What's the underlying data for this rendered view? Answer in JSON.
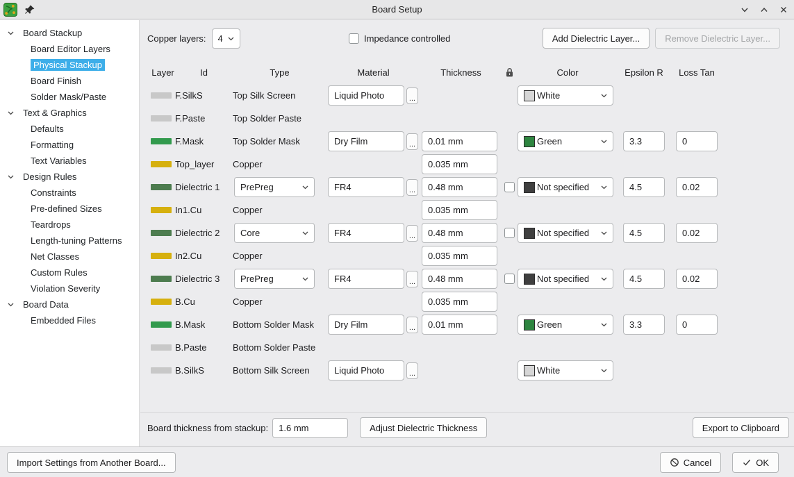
{
  "window": {
    "title": "Board Setup"
  },
  "sidebar": {
    "sections": [
      {
        "label": "Board Stackup",
        "expanded": true,
        "children": [
          {
            "label": "Board Editor Layers",
            "selected": false
          },
          {
            "label": "Physical Stackup",
            "selected": true
          },
          {
            "label": "Board Finish",
            "selected": false
          },
          {
            "label": "Solder Mask/Paste",
            "selected": false
          }
        ]
      },
      {
        "label": "Text & Graphics",
        "expanded": true,
        "children": [
          {
            "label": "Defaults",
            "selected": false
          },
          {
            "label": "Formatting",
            "selected": false
          },
          {
            "label": "Text Variables",
            "selected": false
          }
        ]
      },
      {
        "label": "Design Rules",
        "expanded": true,
        "children": [
          {
            "label": "Constraints",
            "selected": false
          },
          {
            "label": "Pre-defined Sizes",
            "selected": false
          },
          {
            "label": "Teardrops",
            "selected": false
          },
          {
            "label": "Length-tuning Patterns",
            "selected": false
          },
          {
            "label": "Net Classes",
            "selected": false
          },
          {
            "label": "Custom Rules",
            "selected": false
          },
          {
            "label": "Violation Severity",
            "selected": false
          }
        ]
      },
      {
        "label": "Board Data",
        "expanded": true,
        "children": [
          {
            "label": "Embedded Files",
            "selected": false
          }
        ]
      }
    ]
  },
  "toolbar": {
    "copper_layers_label": "Copper layers:",
    "copper_layers_value": "4",
    "impedance_checkbox_label": "Impedance controlled",
    "impedance_checked": false,
    "add_dielectric_button": "Add Dielectric Layer...",
    "remove_dielectric_button": "Remove Dielectric Layer...",
    "remove_dielectric_enabled": false
  },
  "stackup_table": {
    "headers": [
      "Layer",
      "Id",
      "Type",
      "Material",
      "Thickness",
      "",
      "Color",
      "Epsilon R",
      "Loss Tan"
    ],
    "material_browse_label": "...",
    "rows": [
      {
        "chip": "#c8c8c8",
        "id": "F.SilkS",
        "type": "Top Silk Screen",
        "type_widget": "text",
        "material": "Liquid Photo",
        "thickness": null,
        "lock_checkbox": false,
        "color": {
          "name": "White",
          "swatch": "#d6d6d6"
        },
        "epsilon": null,
        "loss": null
      },
      {
        "chip": "#c8c8c8",
        "id": "F.Paste",
        "type": "Top Solder Paste",
        "type_widget": "text",
        "material": null,
        "thickness": null,
        "lock_checkbox": false,
        "color": null,
        "epsilon": null,
        "loss": null
      },
      {
        "chip": "#329a4d",
        "id": "F.Mask",
        "type": "Top Solder Mask",
        "type_widget": "text",
        "material": "Dry Film",
        "thickness": "0.01 mm",
        "lock_checkbox": false,
        "color": {
          "name": "Green",
          "swatch": "#2e8540"
        },
        "epsilon": "3.3",
        "loss": "0"
      },
      {
        "chip": "#d6b00e",
        "id": "Top_layer",
        "type": "Copper",
        "type_widget": "text",
        "material": null,
        "thickness": "0.035 mm",
        "lock_checkbox": false,
        "color": null,
        "epsilon": null,
        "loss": null
      },
      {
        "chip": "#4d7c4f",
        "id": "Dielectric 1",
        "type": "PrePreg",
        "type_widget": "select",
        "material": "FR4",
        "thickness": "0.48 mm",
        "lock_checkbox": true,
        "color": {
          "name": "Not specified",
          "swatch": "#3f3f3f"
        },
        "epsilon": "4.5",
        "loss": "0.02"
      },
      {
        "chip": "#d6b00e",
        "id": "In1.Cu",
        "type": "Copper",
        "type_widget": "text",
        "material": null,
        "thickness": "0.035 mm",
        "lock_checkbox": false,
        "color": null,
        "epsilon": null,
        "loss": null
      },
      {
        "chip": "#4d7c4f",
        "id": "Dielectric 2",
        "type": "Core",
        "type_widget": "select",
        "material": "FR4",
        "thickness": "0.48 mm",
        "lock_checkbox": true,
        "color": {
          "name": "Not specified",
          "swatch": "#3f3f3f"
        },
        "epsilon": "4.5",
        "loss": "0.02"
      },
      {
        "chip": "#d6b00e",
        "id": "In2.Cu",
        "type": "Copper",
        "type_widget": "text",
        "material": null,
        "thickness": "0.035 mm",
        "lock_checkbox": false,
        "color": null,
        "epsilon": null,
        "loss": null
      },
      {
        "chip": "#4d7c4f",
        "id": "Dielectric 3",
        "type": "PrePreg",
        "type_widget": "select",
        "material": "FR4",
        "thickness": "0.48 mm",
        "lock_checkbox": true,
        "color": {
          "name": "Not specified",
          "swatch": "#3f3f3f"
        },
        "epsilon": "4.5",
        "loss": "0.02"
      },
      {
        "chip": "#d6b00e",
        "id": "B.Cu",
        "type": "Copper",
        "type_widget": "text",
        "material": null,
        "thickness": "0.035 mm",
        "lock_checkbox": false,
        "color": null,
        "epsilon": null,
        "loss": null
      },
      {
        "chip": "#329a4d",
        "id": "B.Mask",
        "type": "Bottom Solder Mask",
        "type_widget": "text",
        "material": "Dry Film",
        "thickness": "0.01 mm",
        "lock_checkbox": false,
        "color": {
          "name": "Green",
          "swatch": "#2e8540"
        },
        "epsilon": "3.3",
        "loss": "0"
      },
      {
        "chip": "#c8c8c8",
        "id": "B.Paste",
        "type": "Bottom Solder Paste",
        "type_widget": "text",
        "material": null,
        "thickness": null,
        "lock_checkbox": false,
        "color": null,
        "epsilon": null,
        "loss": null
      },
      {
        "chip": "#c8c8c8",
        "id": "B.SilkS",
        "type": "Bottom Silk Screen",
        "type_widget": "text",
        "material": "Liquid Photo",
        "thickness": null,
        "lock_checkbox": false,
        "color": {
          "name": "White",
          "swatch": "#d6d6d6"
        },
        "epsilon": null,
        "loss": null
      }
    ]
  },
  "footer": {
    "board_thickness_label": "Board thickness from stackup:",
    "board_thickness_value": "1.6 mm",
    "adjust_button": "Adjust Dielectric Thickness",
    "export_button": "Export to Clipboard"
  },
  "action_bar": {
    "import_button": "Import Settings from Another Board...",
    "cancel_button": "Cancel",
    "ok_button": "OK"
  },
  "colors": {
    "accent": "#3daee9",
    "panel_bg": "#ececee",
    "sidebar_bg": "#ffffff",
    "chip_gray": "#c8c8c8",
    "chip_green": "#329a4d",
    "chip_dark_green": "#4d7c4f",
    "chip_yellow": "#d6b00e"
  }
}
